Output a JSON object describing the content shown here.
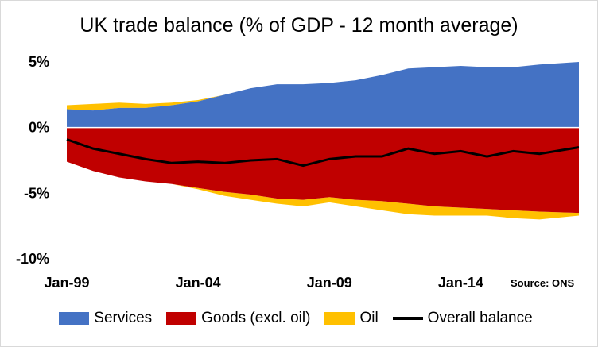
{
  "chart_data": {
    "type": "area",
    "title": "UK trade balance (% of GDP - 12 month average)",
    "source": "Source: ONS",
    "yticks": [
      "5%",
      "0%",
      "-5%",
      "-10%"
    ],
    "ytick_values": [
      5,
      0,
      -5,
      -10
    ],
    "xticks": [
      "Jan-99",
      "Jan-04",
      "Jan-09",
      "Jan-14"
    ],
    "xtick_values": [
      1999,
      2004,
      2009,
      2014
    ],
    "xlim": [
      1999,
      2018.5
    ],
    "ylim": [
      -10,
      5
    ],
    "grid": false,
    "legend_position": "bottom",
    "x": [
      1999,
      2000,
      2001,
      2002,
      2003,
      2004,
      2005,
      2006,
      2007,
      2008,
      2009,
      2010,
      2011,
      2012,
      2013,
      2014,
      2015,
      2016,
      2017,
      2018.5
    ],
    "series": [
      {
        "name": "Services",
        "color": "#4472C4",
        "kind": "area-positive",
        "values": [
          1.4,
          1.3,
          1.5,
          1.5,
          1.7,
          2.0,
          2.5,
          3.0,
          3.3,
          3.3,
          3.4,
          3.6,
          4.0,
          4.5,
          4.6,
          4.7,
          4.6,
          4.6,
          4.8,
          5.0
        ]
      },
      {
        "name": "Goods (excl. oil)",
        "color": "#C00000",
        "kind": "area-negative",
        "values": [
          -2.6,
          -3.3,
          -3.8,
          -4.1,
          -4.3,
          -4.6,
          -4.9,
          -5.1,
          -5.4,
          -5.5,
          -5.3,
          -5.5,
          -5.6,
          -5.8,
          -6.0,
          -6.1,
          -6.2,
          -6.3,
          -6.4,
          -6.5
        ]
      },
      {
        "name": "Oil",
        "color": "#FFC000",
        "kind": "area-stack",
        "pos_values": [
          0.3,
          0.5,
          0.4,
          0.3,
          0.2,
          0.1,
          0.0,
          0.0,
          0.0,
          0.0,
          0.0,
          0.0,
          0.0,
          0.0,
          0.0,
          0.0,
          0.0,
          0.0,
          0.0,
          0.0
        ],
        "neg_values": [
          0.0,
          0.0,
          0.0,
          0.0,
          0.0,
          -0.1,
          -0.3,
          -0.4,
          -0.4,
          -0.5,
          -0.4,
          -0.5,
          -0.7,
          -0.8,
          -0.7,
          -0.6,
          -0.5,
          -0.6,
          -0.6,
          -0.2
        ]
      },
      {
        "name": "Overall balance",
        "color": "#000000",
        "kind": "line",
        "values": [
          -0.9,
          -1.6,
          -2.0,
          -2.4,
          -2.7,
          -2.6,
          -2.7,
          -2.5,
          -2.4,
          -2.9,
          -2.4,
          -2.2,
          -2.2,
          -1.6,
          -2.0,
          -1.8,
          -2.2,
          -1.8,
          -2.0,
          -1.5
        ]
      }
    ]
  }
}
